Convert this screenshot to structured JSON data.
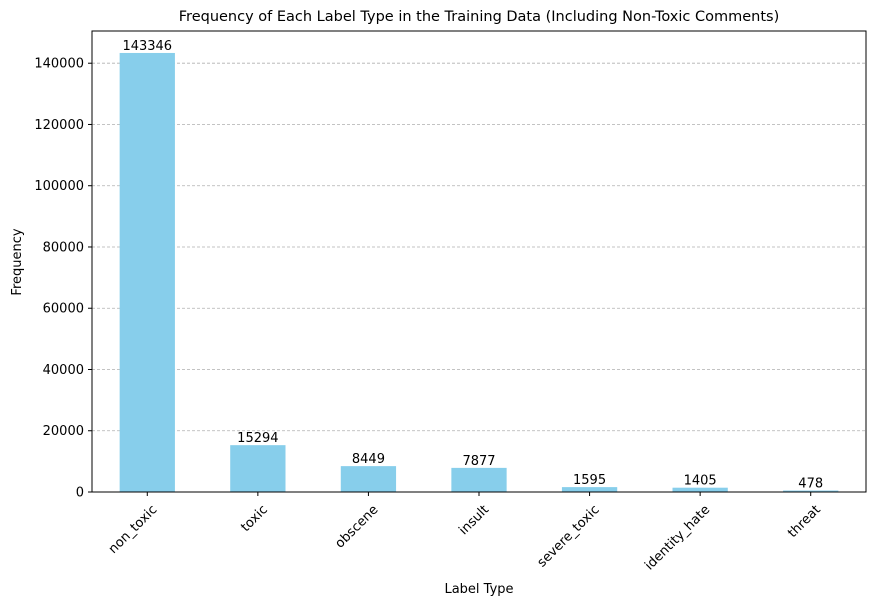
{
  "chart_data": {
    "type": "bar",
    "title": "Frequency of Each Label Type in the Training Data (Including Non-Toxic Comments)",
    "xlabel": "Label Type",
    "ylabel": "Frequency",
    "categories": [
      "non_toxic",
      "toxic",
      "obscene",
      "insult",
      "severe_toxic",
      "identity_hate",
      "threat"
    ],
    "values": [
      143346,
      15294,
      8449,
      7877,
      1595,
      1405,
      478
    ],
    "data_labels": [
      "143346",
      "15294",
      "8449",
      "7877",
      "1595",
      "1405",
      "478"
    ],
    "ylim": [
      0,
      150517
    ],
    "yticks": [
      0,
      20000,
      40000,
      60000,
      80000,
      100000,
      120000,
      140000
    ],
    "ytick_labels": [
      "0",
      "20000",
      "40000",
      "60000",
      "80000",
      "100000",
      "120000",
      "140000"
    ],
    "bar_color": "#87CEEB",
    "grid": "y-dashed"
  }
}
